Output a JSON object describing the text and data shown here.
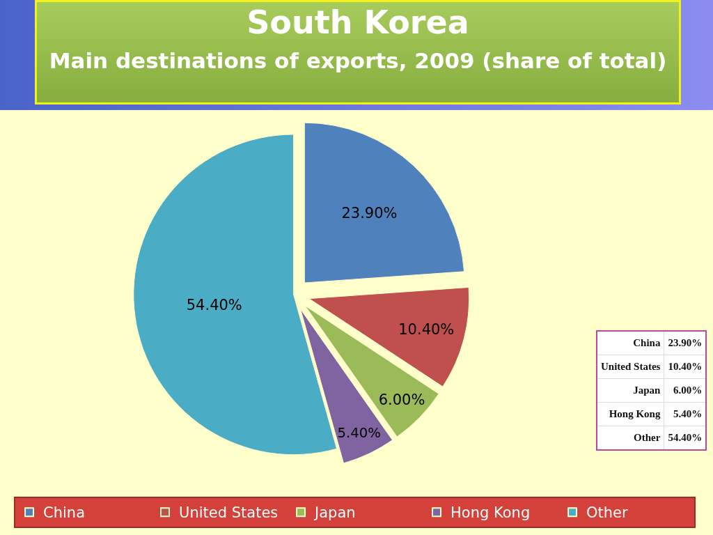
{
  "chart_data": {
    "type": "pie",
    "title": "South Korea",
    "subtitle": "Main destinations of exports, 2009 (share of total)",
    "categories": [
      "China",
      "United States",
      "Japan",
      "Hong Kong",
      "Other"
    ],
    "values": [
      23.9,
      10.4,
      6.0,
      5.4,
      54.4
    ],
    "value_labels": [
      "23.90%",
      "10.40%",
      "6.00%",
      "5.40%",
      "54.40%"
    ],
    "colors": [
      "#4f81bd",
      "#c0504d",
      "#9bbb59",
      "#8064a2",
      "#4bacc6"
    ],
    "legend": "bottom"
  }
}
